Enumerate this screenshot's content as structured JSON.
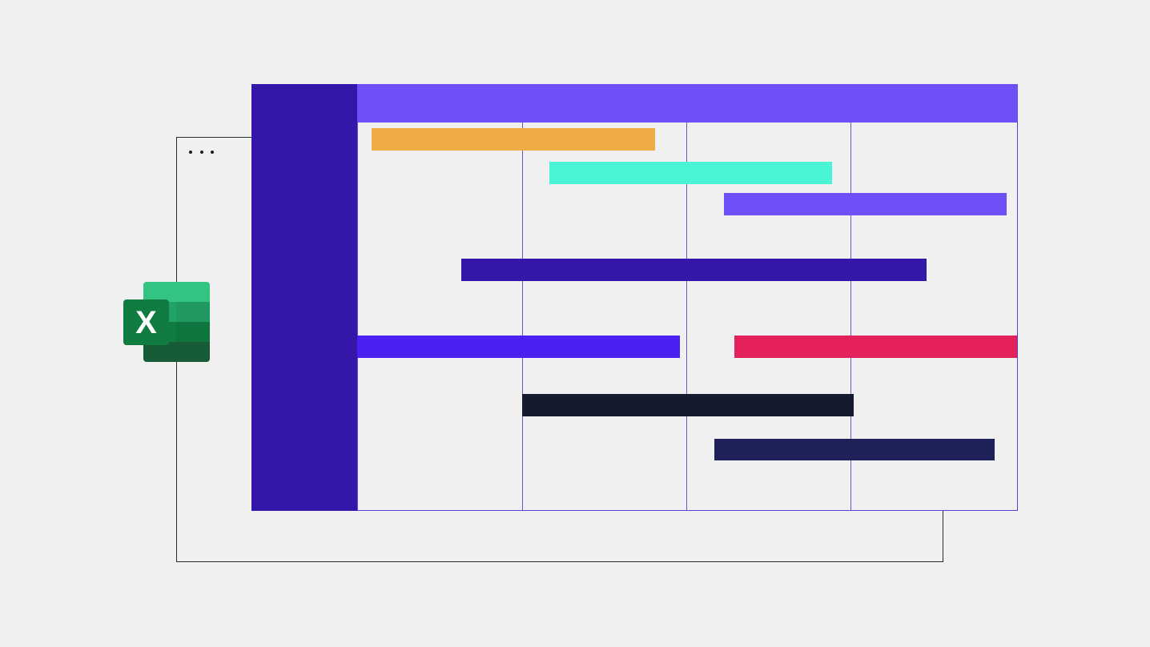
{
  "logo": {
    "letter": "X"
  }
}
